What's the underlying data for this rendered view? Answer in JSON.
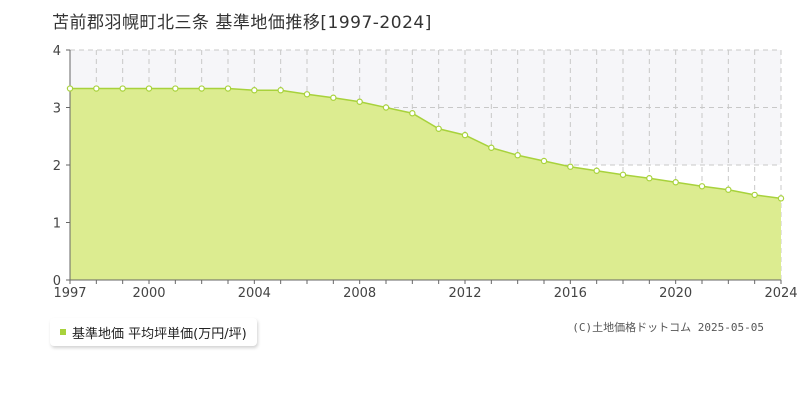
{
  "title": "苫前郡羽幌町北三条 基準地価推移[1997-2024]",
  "legend": {
    "label": "基準地価 平均坪単価(万円/坪)"
  },
  "copyright": "(C)土地価格ドットコム 2025-05-05",
  "colors": {
    "area_fill": "#dcec90",
    "line": "#a8d23c",
    "marker_fill": "#ffffff",
    "grid": "#c8c8c8",
    "axis": "#666666",
    "plot_bg_top": "#f6f6f9"
  },
  "chart_data": {
    "type": "area",
    "title": "苫前郡羽幌町北三条 基準地価推移[1997-2024]",
    "xlabel": "",
    "ylabel": "",
    "xlim": [
      1997,
      2024
    ],
    "ylim": [
      0,
      4
    ],
    "x_ticks": [
      "1997",
      "2000",
      "2004",
      "2008",
      "2012",
      "2016",
      "2020",
      "2024"
    ],
    "y_ticks": [
      "0",
      "1",
      "2",
      "3",
      "4"
    ],
    "grid": true,
    "legend_position": "bottom-left",
    "series": [
      {
        "name": "基準地価 平均坪単価(万円/坪)",
        "x": [
          1997,
          1998,
          1999,
          2000,
          2001,
          2002,
          2003,
          2004,
          2005,
          2006,
          2007,
          2008,
          2009,
          2010,
          2011,
          2012,
          2013,
          2014,
          2015,
          2016,
          2017,
          2018,
          2019,
          2020,
          2021,
          2022,
          2023,
          2024
        ],
        "values": [
          3.33,
          3.33,
          3.33,
          3.33,
          3.33,
          3.33,
          3.33,
          3.3,
          3.3,
          3.23,
          3.17,
          3.1,
          3.0,
          2.9,
          2.63,
          2.52,
          2.3,
          2.17,
          2.07,
          1.97,
          1.9,
          1.83,
          1.77,
          1.7,
          1.63,
          1.57,
          1.48,
          1.42
        ]
      }
    ]
  }
}
